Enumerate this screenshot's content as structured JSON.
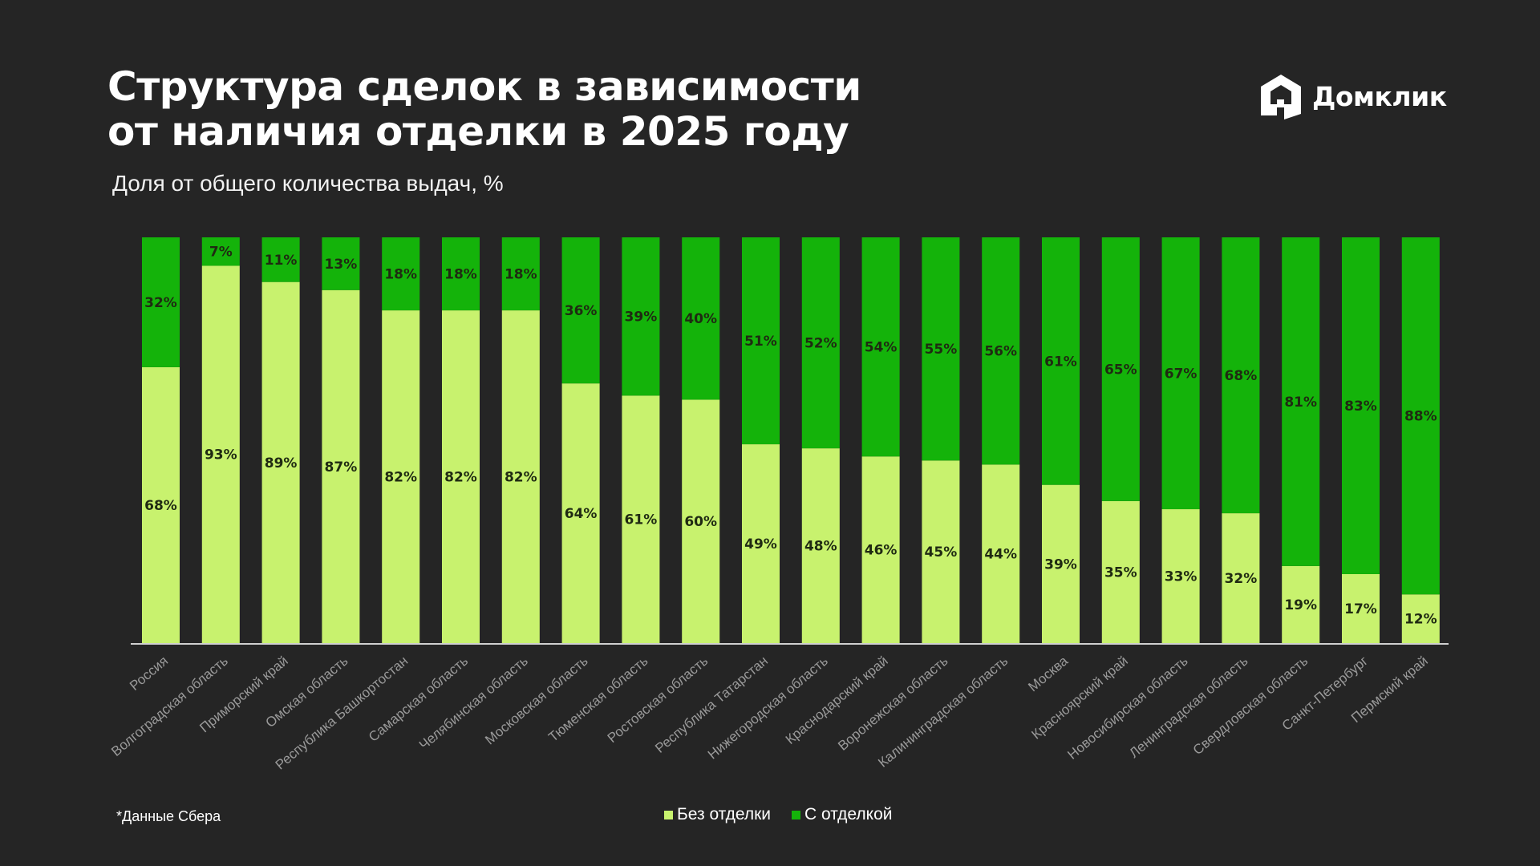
{
  "header": {
    "title_line1": "Структура сделок в зависимости",
    "title_line2": "от наличия отделки в 2025 году",
    "subtitle": "Доля от общего количества выдач, %"
  },
  "logo": {
    "text": "Домклик",
    "icon": "house-icon"
  },
  "footer": {
    "note": "*Данные Сбера"
  },
  "colors": {
    "background": "#252525",
    "without_finish": "#c8f26e",
    "with_finish": "#14b30a",
    "axis": "#d0d0d0",
    "tick_label": "#9a9a9a",
    "value_label": "#1f2a12"
  },
  "chart_data": {
    "type": "bar",
    "stacked": true,
    "title": "Структура сделок в зависимости от наличия отделки в 2025 году",
    "ylabel": "Доля от общего количества выдач, %",
    "ylim": [
      0,
      100
    ],
    "grid": false,
    "legend_position": "bottom-center",
    "categories": [
      "Россия",
      "Волгоградская область",
      "Приморский край",
      "Омская область",
      "Республика Башкортостан",
      "Самарская область",
      "Челябинская область",
      "Московская область",
      "Тюменская область",
      "Ростовская область",
      "Республика Татарстан",
      "Нижегородская область",
      "Краснодарский край",
      "Воронежская область",
      "Калининградская область",
      "Москва",
      "Красноярский край",
      "Новосибирская область",
      "Ленинградская область",
      "Свердловская область",
      "Санкт-Петербург",
      "Пермский край"
    ],
    "series": [
      {
        "name": "Без отделки",
        "color": "#c8f26e",
        "values": [
          68,
          93,
          89,
          87,
          82,
          82,
          82,
          64,
          61,
          60,
          49,
          48,
          46,
          45,
          44,
          39,
          35,
          33,
          32,
          19,
          17,
          12
        ]
      },
      {
        "name": "С отделкой",
        "color": "#14b30a",
        "values": [
          32,
          7,
          11,
          13,
          18,
          18,
          18,
          36,
          39,
          40,
          51,
          52,
          54,
          55,
          56,
          61,
          65,
          67,
          68,
          81,
          83,
          88
        ]
      }
    ]
  }
}
